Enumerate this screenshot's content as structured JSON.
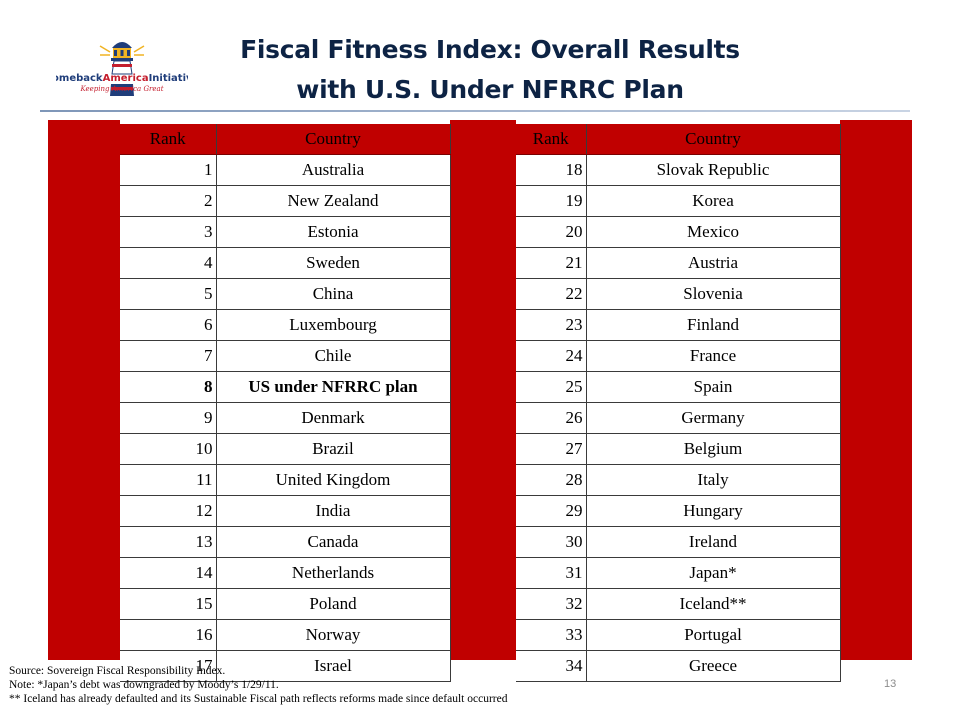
{
  "logo": {
    "name_part1": "Comeback",
    "name_part2": "America",
    "name_part3": "Initiative",
    "tagline": "Keeping America Great",
    "colors": {
      "navy": "#1f3d7a",
      "red": "#c41e2d",
      "gold": "#f0b323"
    }
  },
  "title": {
    "line1": "Fiscal Fitness Index: Overall Results",
    "line2": "with U.S. Under NFRRC Plan"
  },
  "table": {
    "headers": {
      "rank": "Rank",
      "country": "Country"
    },
    "left": [
      {
        "rank": "1",
        "country": "Australia"
      },
      {
        "rank": "2",
        "country": "New Zealand"
      },
      {
        "rank": "3",
        "country": "Estonia"
      },
      {
        "rank": "4",
        "country": "Sweden"
      },
      {
        "rank": "5",
        "country": "China"
      },
      {
        "rank": "6",
        "country": "Luxembourg"
      },
      {
        "rank": "7",
        "country": "Chile"
      },
      {
        "rank": "8",
        "country": "US under NFRRC plan",
        "bold": true
      },
      {
        "rank": "9",
        "country": "Denmark"
      },
      {
        "rank": "10",
        "country": "Brazil"
      },
      {
        "rank": "11",
        "country": "United Kingdom"
      },
      {
        "rank": "12",
        "country": "India"
      },
      {
        "rank": "13",
        "country": "Canada"
      },
      {
        "rank": "14",
        "country": "Netherlands"
      },
      {
        "rank": "15",
        "country": "Poland"
      },
      {
        "rank": "16",
        "country": "Norway"
      },
      {
        "rank": "17",
        "country": "Israel"
      }
    ],
    "right": [
      {
        "rank": "18",
        "country": "Slovak Republic"
      },
      {
        "rank": "19",
        "country": "Korea"
      },
      {
        "rank": "20",
        "country": "Mexico"
      },
      {
        "rank": "21",
        "country": "Austria"
      },
      {
        "rank": "22",
        "country": "Slovenia"
      },
      {
        "rank": "23",
        "country": "Finland"
      },
      {
        "rank": "24",
        "country": "France"
      },
      {
        "rank": "25",
        "country": "Spain"
      },
      {
        "rank": "26",
        "country": "Germany"
      },
      {
        "rank": "27",
        "country": "Belgium"
      },
      {
        "rank": "28",
        "country": "Italy"
      },
      {
        "rank": "29",
        "country": "Hungary"
      },
      {
        "rank": "30",
        "country": "Ireland"
      },
      {
        "rank": "31",
        "country": "Japan*"
      },
      {
        "rank": "32",
        "country": "Iceland**"
      },
      {
        "rank": "33",
        "country": "Portugal"
      },
      {
        "rank": "34",
        "country": "Greece"
      }
    ]
  },
  "notes": {
    "source": "Source: Sovereign Fiscal Responsibility Index.",
    "note1": "Note: *Japan’s debt was downgraded by Moody’s 1/29/11.",
    "note2": "** Iceland has already defaulted and its Sustainable Fiscal path reflects reforms made since default occurred"
  },
  "page_number": "13",
  "colors": {
    "table_red": "#c00000",
    "title_navy": "#0d2344"
  }
}
